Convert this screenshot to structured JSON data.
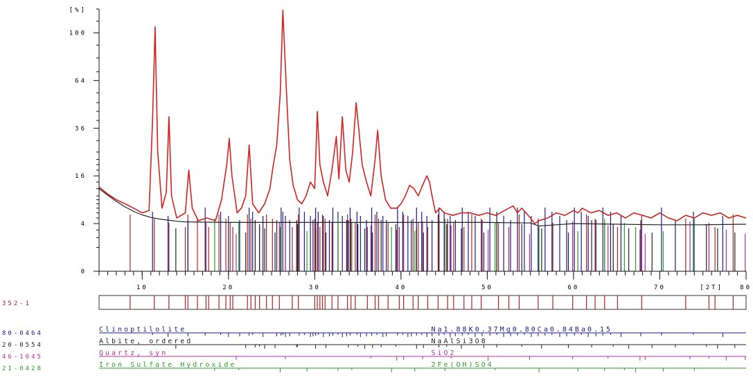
{
  "chart_data": {
    "type": "line",
    "x_axis": {
      "min": 5,
      "max": 80,
      "ticks": [
        10,
        20,
        30,
        40,
        50,
        60,
        70,
        80
      ],
      "tick_labels": [
        "10",
        "20",
        "30",
        "40",
        "50",
        "60",
        "70",
        "80"
      ],
      "unit_label": "[2T]"
    },
    "y_axis": {
      "scale": "sqrt",
      "min": 0,
      "max": 121,
      "ticks": [
        0,
        4,
        16,
        36,
        64,
        100
      ],
      "tick_labels": [
        "0",
        "4",
        "16",
        "36",
        "64",
        "100"
      ],
      "unit_label": "[%]"
    },
    "series": [
      {
        "color": "#d42020",
        "x": [
          5,
          6,
          7,
          8,
          9,
          10,
          10.8,
          11.2,
          11.5,
          11.8,
          12.3,
          12.8,
          13.1,
          13.4,
          14,
          15,
          15.4,
          15.8,
          16.5,
          17.5,
          18.5,
          19.2,
          19.8,
          20.1,
          20.4,
          21,
          21.5,
          22,
          22.4,
          22.8,
          23.5,
          24.2,
          24.8,
          25.2,
          25.6,
          26,
          26.3,
          26.7,
          27.1,
          27.5,
          28,
          28.5,
          29,
          29.5,
          30,
          30.3,
          30.6,
          31,
          31.5,
          32,
          32.5,
          32.8,
          33.2,
          33.6,
          34,
          34.4,
          34.8,
          35.1,
          35.5,
          36,
          36.5,
          37,
          37.3,
          37.7,
          38.2,
          38.8,
          39.5,
          40,
          40.5,
          41,
          41.5,
          42,
          42.5,
          43,
          43.3,
          43.6,
          44,
          44.5,
          45,
          46,
          47,
          48,
          49,
          50,
          51,
          52,
          53,
          53.5,
          54,
          55,
          55.5,
          56,
          57,
          58,
          59,
          60,
          60.5,
          61,
          62,
          63,
          64,
          65,
          66,
          67,
          68,
          69,
          70,
          71,
          72,
          73,
          74,
          75,
          76,
          77,
          78,
          79,
          80
        ],
        "y": [
          12.5,
          10.5,
          9.0,
          8.0,
          7.0,
          6.0,
          6.5,
          40,
          105,
          25,
          7,
          11,
          42,
          10,
          5,
          6,
          18,
          7,
          4.5,
          5,
          4.5,
          9,
          20,
          31,
          16,
          6,
          7,
          10,
          28,
          8,
          6,
          8,
          12,
          20,
          28,
          55,
          120,
          60,
          22,
          13,
          9,
          8,
          10,
          14,
          12,
          45,
          20,
          14,
          10,
          18,
          32,
          15,
          42,
          18,
          14,
          25,
          50,
          36,
          20,
          14,
          10,
          22,
          35,
          16,
          9,
          7,
          7,
          8,
          10,
          13,
          12,
          10,
          13,
          16,
          14,
          10,
          6,
          7,
          6,
          5.5,
          6,
          6,
          5.5,
          6,
          5.5,
          6.5,
          7.5,
          6,
          7,
          5,
          4,
          4.5,
          5,
          6,
          5.5,
          6.5,
          6,
          7,
          6,
          6.5,
          5.5,
          6,
          5,
          6,
          5.5,
          5,
          6,
          5,
          4.5,
          5.5,
          5,
          6,
          5.5,
          6,
          5,
          5.5,
          5
        ]
      },
      {
        "color": "#222222",
        "x": [
          5,
          6,
          7,
          8,
          9,
          10,
          11,
          12,
          13,
          14,
          15,
          20,
          30,
          40,
          50,
          55,
          56,
          58,
          60,
          65,
          70,
          75,
          80
        ],
        "y": [
          12.0,
          10.2,
          8.6,
          7.3,
          6.3,
          5.6,
          5.1,
          4.8,
          4.6,
          4.4,
          4.3,
          4.2,
          4.2,
          4.2,
          4.2,
          4.1,
          3.6,
          3.8,
          4.0,
          3.9,
          3.8,
          3.8,
          3.9
        ]
      }
    ],
    "reference_patterns": [
      {
        "code": "352-1",
        "color": "#b22222",
        "name": "",
        "formula": "",
        "positions": [
          8.6,
          11.4,
          13.1,
          15.0,
          15.3,
          16.4,
          17.4,
          17.7,
          18.9,
          19.7,
          20.2,
          20.5,
          22.2,
          22.6,
          23.1,
          23.6,
          24.4,
          25.1,
          25.9,
          27.4,
          28.1,
          30.0,
          30.3,
          30.6,
          30.9,
          31.2,
          32.0,
          32.7,
          33.8,
          34.2,
          34.7,
          36.1,
          37.0,
          37.4,
          38.5,
          39.8,
          40.3,
          41.4,
          42.0,
          43.1,
          44.3,
          45.4,
          46.1,
          47.3,
          48.2,
          49.3,
          51.3,
          52.5,
          53.7,
          55.9,
          57.6,
          59.9,
          61.5,
          62.5,
          63.6,
          65.1,
          67.9,
          73.0,
          75.7,
          76.4,
          78.5
        ]
      },
      {
        "code": "80-0464",
        "color": "#1a1a8c",
        "name": "Clinoptilolite",
        "formula": "Na1.88K0.37Mg0.80Ca0.84Ba0.15",
        "positions": [
          11.2,
          13.0,
          15.3,
          17.3,
          19.1,
          20.0,
          21.3,
          22.4,
          22.8,
          24.0,
          25.6,
          26.1,
          26.3,
          26.6,
          27.1,
          28.2,
          28.8,
          29.5,
          29.8,
          30.1,
          30.4,
          31.0,
          31.7,
          32.1,
          32.7,
          33.2,
          33.7,
          34.1,
          34.9,
          35.3,
          36.0,
          36.6,
          37.2,
          37.9,
          38.3,
          39.6,
          40.2,
          40.8,
          41.2,
          41.8,
          42.4,
          43.0,
          43.6,
          44.4,
          45.0,
          45.7,
          46.3,
          47.1,
          47.8,
          48.6,
          49.4,
          50.3,
          51.1,
          51.9,
          52.7,
          53.5,
          54.3,
          55.1,
          55.9,
          56.7,
          57.5,
          58.4,
          59.2,
          60.1,
          60.9,
          61.7,
          62.6,
          63.4,
          64.3,
          65.5,
          67.8,
          70.2,
          73.9,
          77.3
        ]
      },
      {
        "code": "20-0554",
        "color": "#222222",
        "name": "Albite, ordered",
        "formula": "NaAlSi3O8",
        "positions": [
          13.9,
          22.0,
          23.1,
          23.6,
          24.2,
          25.4,
          27.9,
          28.0,
          30.1,
          31.3,
          33.9,
          35.0,
          35.8,
          36.7,
          37.7,
          39.4,
          41.8,
          42.6,
          44.4,
          45.3,
          47.0,
          49.6,
          51.1,
          54.0,
          56.3,
          59.4,
          62.1,
          64.6,
          66.4,
          69.1,
          71.8,
          75.4,
          76.7,
          78.7
        ]
      },
      {
        "code": "46-1045",
        "color": "#b0309a",
        "name": "Quartz, syn",
        "formula": "SiO2",
        "positions": [
          20.9,
          26.6,
          36.5,
          39.5,
          40.3,
          42.5,
          45.8,
          50.1,
          54.9,
          59.9,
          64.0,
          67.7,
          68.3,
          73.5,
          75.7,
          77.7,
          79.9
        ]
      },
      {
        "code": "21-0428",
        "color": "#2a9d2a",
        "name": "Iron Sulfate Hydroxide",
        "formula": "2Fe(OH)SO4",
        "positions": [
          18.4,
          21.2,
          26.0,
          29.1,
          32.7,
          34.3,
          38.9,
          41.6,
          45.1,
          50.9,
          56.0,
          60.5,
          63.6,
          65.9,
          67.2,
          70.4,
          74.0
        ]
      }
    ]
  }
}
